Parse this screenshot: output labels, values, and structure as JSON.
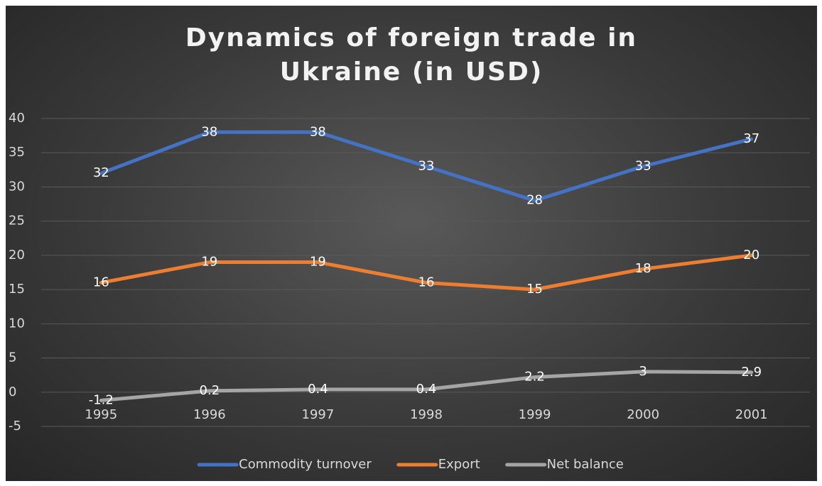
{
  "chart_data": {
    "type": "line",
    "title": "Dynamics of foreign trade in Ukraine (in USD)",
    "categories": [
      "1995",
      "1996",
      "1997",
      "1998",
      "1999",
      "2000",
      "2001"
    ],
    "series": [
      {
        "name": "Commodity turnover",
        "color": "#4472c4",
        "values": [
          32,
          38,
          38,
          33,
          28,
          33,
          37
        ]
      },
      {
        "name": "Export",
        "color": "#ed7d31",
        "values": [
          16,
          19,
          19,
          16,
          15,
          18,
          20
        ]
      },
      {
        "name": "Net balance",
        "color": "#a5a5a5",
        "values": [
          -1.2,
          0.2,
          0.4,
          0.4,
          2.2,
          3,
          2.9
        ]
      }
    ],
    "ylim": [
      -5,
      40
    ],
    "yticks": [
      -5,
      0,
      5,
      10,
      15,
      20,
      25,
      30,
      35,
      40
    ],
    "grid": true,
    "legend": "bottom"
  }
}
